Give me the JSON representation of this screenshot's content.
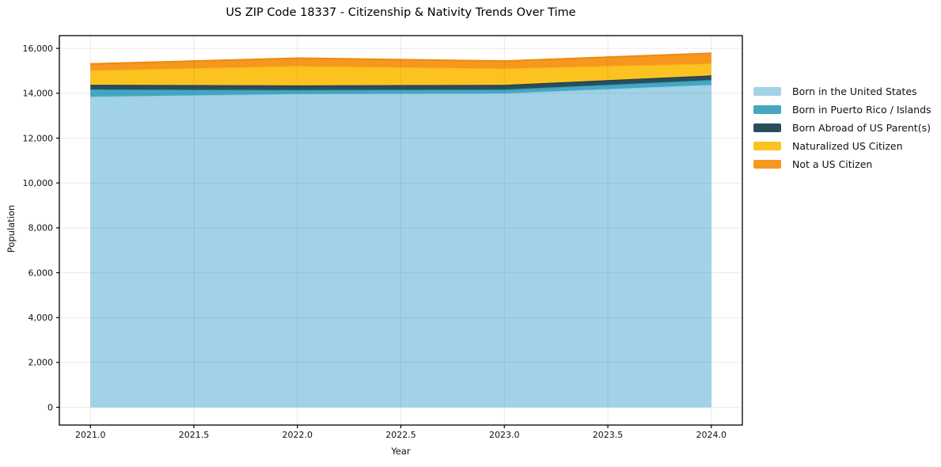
{
  "chart_data": {
    "type": "area",
    "stacked": true,
    "title": "US ZIP Code 18337 - Citizenship & Nativity Trends Over Time",
    "xlabel": "Year",
    "ylabel": "Population",
    "x": [
      2021,
      2022,
      2023,
      2024
    ],
    "series": [
      {
        "name": "Born in the United States",
        "fill": "#a2d2e8",
        "edge": "#8fc8e0",
        "values": [
          13850,
          13970,
          14000,
          14380
        ]
      },
      {
        "name": "Born in Puerto Rico / Islands",
        "fill": "#44a8c2",
        "edge": "#2d97b5",
        "values": [
          320,
          180,
          165,
          215
        ]
      },
      {
        "name": "Born Abroad of US Parent(s)",
        "fill": "#2a4d5e",
        "edge": "#1c3c4c",
        "values": [
          210,
          200,
          210,
          200
        ]
      },
      {
        "name": "Naturalized US Citizen",
        "fill": "#fcc320",
        "edge": "#f8b912",
        "values": [
          640,
          865,
          730,
          530
        ]
      },
      {
        "name": "Not a US Citizen",
        "fill": "#f6971f",
        "edge": "#ee8a0e",
        "values": [
          290,
          350,
          330,
          460
        ]
      }
    ],
    "totals": [
      15310,
      15565,
      15435,
      15785
    ],
    "xlim": [
      2020.85,
      2024.15
    ],
    "ylim": [
      -790,
      16570
    ],
    "x_ticks": {
      "values": [
        2021.0,
        2021.5,
        2022.0,
        2022.5,
        2023.0,
        2023.5,
        2024.0
      ],
      "labels": [
        "2021.0",
        "2021.5",
        "2022.0",
        "2022.5",
        "2023.0",
        "2023.5",
        "2024.0"
      ]
    },
    "y_ticks": {
      "values": [
        0,
        2000,
        4000,
        6000,
        8000,
        10000,
        12000,
        14000,
        16000
      ],
      "labels": [
        "0",
        "2,000",
        "4,000",
        "6,000",
        "8,000",
        "10,000",
        "12,000",
        "14,000",
        "16,000"
      ]
    },
    "grid": true,
    "legend_position": "right of plot, no frame",
    "colors": {
      "spine": "#000000",
      "gridline": "rgba(70,70,70,0.12)",
      "background": "#ffffff"
    }
  }
}
